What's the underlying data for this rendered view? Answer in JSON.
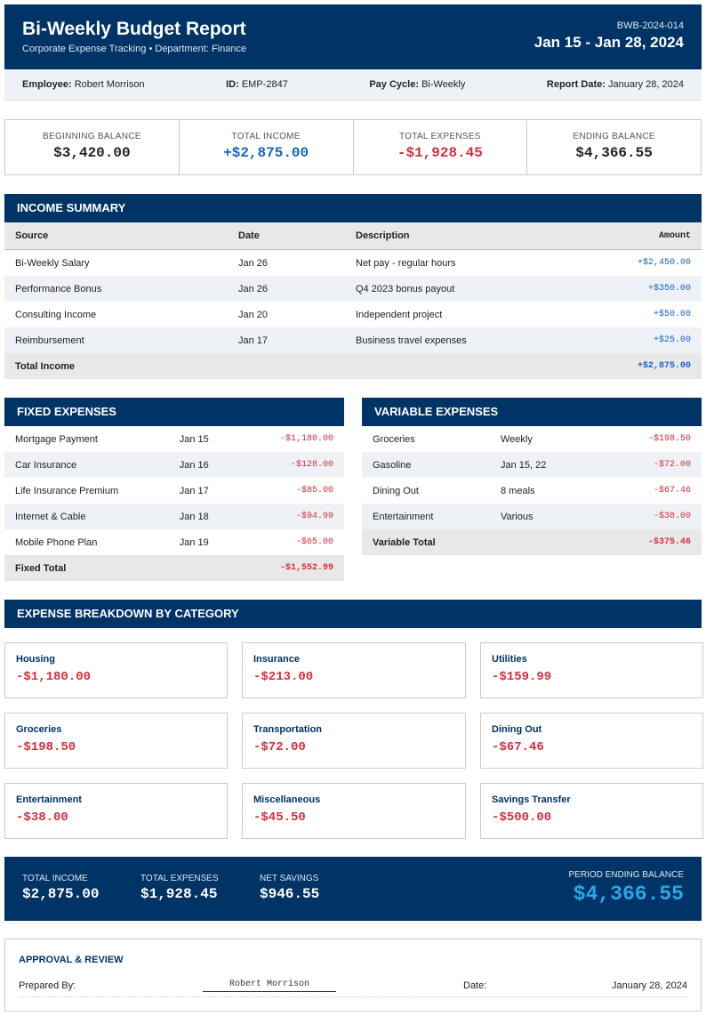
{
  "header": {
    "title": "Bi-Weekly Budget Report",
    "subtitle": "Corporate Expense Tracking • Department: Finance",
    "report_id": "BWB-2024-014",
    "period": "Jan 15 - Jan 28, 2024"
  },
  "info": [
    {
      "label": "Employee:",
      "value": "Robert Morrison"
    },
    {
      "label": "ID:",
      "value": "EMP-2847"
    },
    {
      "label": "Pay Cycle:",
      "value": "Bi-Weekly"
    },
    {
      "label": "Report Date:",
      "value": "January 28, 2024"
    }
  ],
  "summary": [
    {
      "label": "BEGINNING BALANCE",
      "value": "$3,420.00"
    },
    {
      "label": "TOTAL INCOME",
      "value": "+$2,875.00"
    },
    {
      "label": "TOTAL EXPENSES",
      "value": "-$1,928.45"
    },
    {
      "label": "ENDING BALANCE",
      "value": "$4,366.55"
    }
  ],
  "income": {
    "title": "INCOME SUMMARY",
    "columns": [
      "Source",
      "Date",
      "Description",
      "Amount"
    ],
    "rows": [
      [
        "Bi-Weekly Salary",
        "Jan 26",
        "Net pay - regular hours",
        "+$2,450.00"
      ],
      [
        "Performance Bonus",
        "Jan 26",
        "Q4 2023 bonus payout",
        "+$350.00"
      ],
      [
        "Consulting Income",
        "Jan 20",
        "Independent project",
        "+$50.00"
      ],
      [
        "Reimbursement",
        "Jan 17",
        "Business travel expenses",
        "+$25.00"
      ]
    ],
    "total": {
      "label": "Total Income",
      "amount": "+$2,875.00"
    }
  },
  "fixed": {
    "title": "FIXED EXPENSES",
    "rows": [
      [
        "Mortgage Payment",
        "Jan 15",
        "-$1,180.00"
      ],
      [
        "Car Insurance",
        "Jan 16",
        "-$128.00"
      ],
      [
        "Life Insurance Premium",
        "Jan 17",
        "-$85.00"
      ],
      [
        "Internet & Cable",
        "Jan 18",
        "-$94.99"
      ],
      [
        "Mobile Phone Plan",
        "Jan 19",
        "-$65.00"
      ]
    ],
    "total": {
      "label": "Fixed Total",
      "amount": "-$1,552.99"
    }
  },
  "variable": {
    "title": "VARIABLE EXPENSES",
    "rows": [
      [
        "Groceries",
        "Weekly",
        "-$198.50"
      ],
      [
        "Gasoline",
        "Jan 15, 22",
        "-$72.00"
      ],
      [
        "Dining Out",
        "8 meals",
        "-$67.46"
      ],
      [
        "Entertainment",
        "Various",
        "-$38.00"
      ]
    ],
    "total": {
      "label": "Variable Total",
      "amount": "-$375.46"
    }
  },
  "breakdown": {
    "title": "EXPENSE BREAKDOWN BY CATEGORY",
    "items": [
      {
        "label": "Housing",
        "amount": "-$1,180.00"
      },
      {
        "label": "Insurance",
        "amount": "-$213.00"
      },
      {
        "label": "Utilities",
        "amount": "-$159.99"
      },
      {
        "label": "Groceries",
        "amount": "-$198.50"
      },
      {
        "label": "Transportation",
        "amount": "-$72.00"
      },
      {
        "label": "Dining Out",
        "amount": "-$67.46"
      },
      {
        "label": "Entertainment",
        "amount": "-$38.00"
      },
      {
        "label": "Miscellaneous",
        "amount": "-$45.50"
      },
      {
        "label": "Savings Transfer",
        "amount": "-$500.00"
      }
    ]
  },
  "totals": {
    "items": [
      {
        "label": "TOTAL INCOME",
        "value": "$2,875.00"
      },
      {
        "label": "TOTAL EXPENSES",
        "value": "$1,928.45"
      },
      {
        "label": "NET SAVINGS",
        "value": "$946.55"
      }
    ],
    "ending": {
      "label": "PERIOD ENDING BALANCE",
      "value": "$4,366.55"
    }
  },
  "approval": {
    "title": "APPROVAL & REVIEW",
    "prepared_label": "Prepared By:",
    "signature": "Robert Morrison",
    "date_label": "Date:",
    "date": "January 28, 2024"
  }
}
